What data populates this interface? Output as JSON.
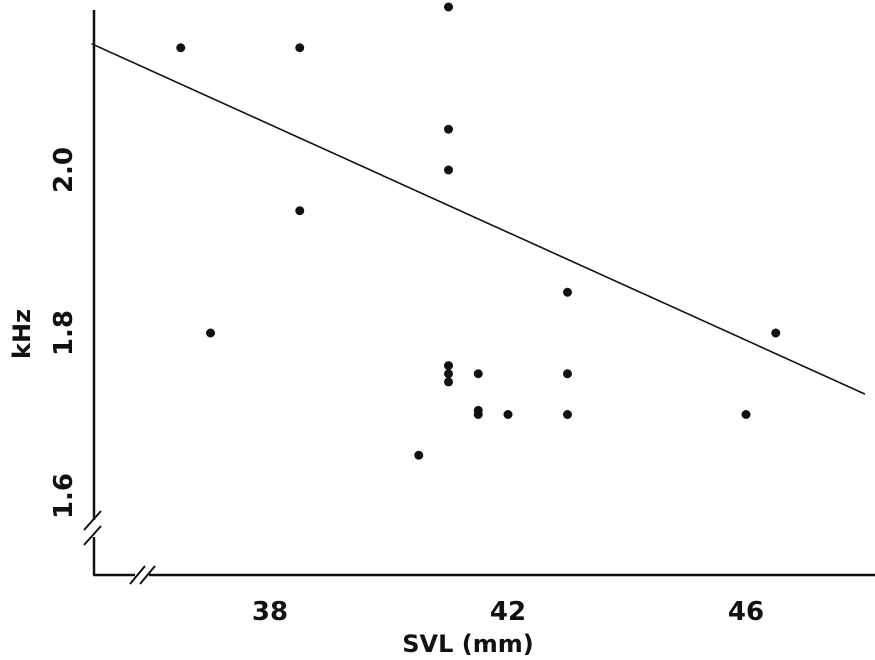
{
  "chart_data": {
    "type": "scatter",
    "title": "",
    "xlabel": "SVL (mm)",
    "ylabel": "kHz",
    "xlim": [
      35,
      48
    ],
    "ylim": [
      1.5,
      2.2
    ],
    "x_ticks": [
      38,
      42,
      46
    ],
    "x_tick_labels": [
      "38",
      "42",
      "46"
    ],
    "y_ticks": [
      1.6,
      1.8,
      2.0
    ],
    "y_tick_labels": [
      "1.6",
      "1.8",
      "2.0"
    ],
    "grid": false,
    "axis_breaks": [
      "x",
      "y"
    ],
    "points": [
      {
        "x": 36.5,
        "y": 2.15
      },
      {
        "x": 37.0,
        "y": 1.8
      },
      {
        "x": 38.5,
        "y": 2.15
      },
      {
        "x": 38.5,
        "y": 1.95
      },
      {
        "x": 40.5,
        "y": 1.65
      },
      {
        "x": 41.0,
        "y": 2.2
      },
      {
        "x": 41.0,
        "y": 2.05
      },
      {
        "x": 41.0,
        "y": 2.0
      },
      {
        "x": 41.0,
        "y": 1.76
      },
      {
        "x": 41.0,
        "y": 1.75
      },
      {
        "x": 41.0,
        "y": 1.74
      },
      {
        "x": 41.5,
        "y": 1.75
      },
      {
        "x": 41.5,
        "y": 1.705
      },
      {
        "x": 41.5,
        "y": 1.7
      },
      {
        "x": 42.0,
        "y": 1.7
      },
      {
        "x": 43.0,
        "y": 1.85
      },
      {
        "x": 43.0,
        "y": 1.75
      },
      {
        "x": 43.0,
        "y": 1.7
      },
      {
        "x": 46.0,
        "y": 1.7
      },
      {
        "x": 46.5,
        "y": 1.8
      }
    ],
    "regression_line": {
      "x": [
        35.0,
        48.0
      ],
      "y": [
        2.155,
        1.725
      ]
    },
    "colors": {
      "points": "#111111",
      "line": "#111111",
      "axis": "#111111",
      "background": "#ffffff"
    }
  }
}
